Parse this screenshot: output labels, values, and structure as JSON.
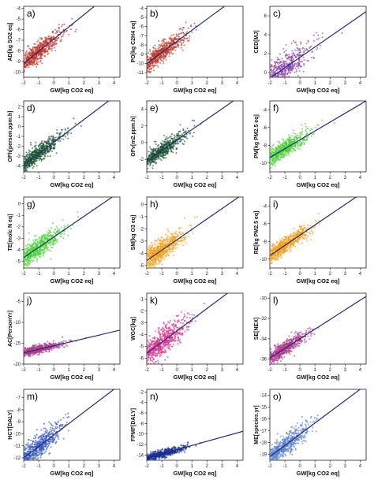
{
  "figure": {
    "footer_note": ""
  },
  "chart_data": [
    {
      "type": "scatter",
      "panel_label": "a)",
      "xlabel": "GW[kg CO2 eq]",
      "ylabel": "AD[kg SO2 eq]",
      "color": "#c0392b",
      "xticks": [
        "-2",
        "-1",
        "0",
        "1",
        "2",
        "3",
        "4"
      ],
      "yticks": [
        "-4",
        "-5",
        "-6",
        "-7",
        "-8",
        "-9",
        "-10"
      ],
      "xlim": [
        -2,
        4.4
      ],
      "ylim": [
        -10.5,
        -3.8
      ],
      "spread": 0.45,
      "fit": {
        "slope": 1.15,
        "intercept": -6.9
      },
      "x": [
        -1.5,
        -0.5,
        0,
        0.5,
        1,
        2,
        3
      ],
      "y": [
        -8.6,
        -7.5,
        -6.9,
        -6.3,
        -5.8,
        -4.6,
        -3.5
      ],
      "n_points": 700
    },
    {
      "type": "scatter",
      "panel_label": "b)",
      "xlabel": "GW[kg CO2 eq]",
      "ylabel": "PO[kg C2H4 eq]",
      "color": "#c0392b",
      "xticks": [
        "-2",
        "-1",
        "0",
        "1",
        "2",
        "3",
        "4"
      ],
      "yticks": [
        "-4",
        "-5",
        "-6",
        "-7",
        "-8",
        "-9",
        "-10",
        "-11"
      ],
      "xlim": [
        -2,
        4.4
      ],
      "ylim": [
        -11.5,
        -3.8
      ],
      "spread": 0.5,
      "fit": {
        "slope": 1.2,
        "intercept": -7.6
      },
      "x": [
        -1.5,
        -0.5,
        0,
        0.5,
        1,
        2,
        3
      ],
      "y": [
        -9.4,
        -8.2,
        -7.6,
        -7.0,
        -6.4,
        -5.2,
        -4.0
      ],
      "n_points": 700
    },
    {
      "type": "scatter",
      "panel_label": "c)",
      "xlabel": "GW[kg CO2 eq]",
      "ylabel": "CED[MJ]",
      "color": "#8e44ad",
      "xticks": [
        "-2",
        "-1",
        "0",
        "1",
        "2",
        "3",
        "4"
      ],
      "yticks": [
        "6",
        "4",
        "2",
        "0"
      ],
      "xlim": [
        -2,
        4.4
      ],
      "ylim": [
        -0.5,
        7
      ],
      "spread": 0.8,
      "fit": {
        "slope": 1.1,
        "intercept": 1.6
      },
      "x": [
        -1.5,
        -0.5,
        0,
        0.5,
        1,
        2,
        3
      ],
      "y": [
        0.0,
        1.1,
        1.6,
        2.2,
        2.7,
        3.8,
        4.9
      ],
      "n_points": 600
    },
    {
      "type": "scatter",
      "panel_label": "d)",
      "xlabel": "GW[kg CO2 eq]",
      "ylabel": "OFh[person.ppm.h]",
      "color": "#1e5631",
      "xticks": [
        "-2",
        "-1",
        "0",
        "1",
        "2",
        "3",
        "4"
      ],
      "yticks": [
        "2",
        "1",
        "0",
        "-1",
        "-2",
        "-3",
        "-4"
      ],
      "xlim": [
        -2,
        4.4
      ],
      "ylim": [
        -4.6,
        2.6
      ],
      "spread": 0.45,
      "fit": {
        "slope": 1.15,
        "intercept": -1.6
      },
      "x": [
        -1.5,
        -0.5,
        0,
        0.5,
        1,
        2,
        3
      ],
      "y": [
        -3.3,
        -2.2,
        -1.6,
        -1.0,
        -0.5,
        0.7,
        1.9
      ],
      "n_points": 700
    },
    {
      "type": "scatter",
      "panel_label": "e)",
      "xlabel": "GW[kg CO2 eq]",
      "ylabel": "OFv[m2.ppm.h]",
      "color": "#1e5631",
      "xticks": [
        "-2",
        "-1",
        "0",
        "1",
        "2",
        "3",
        "4"
      ],
      "yticks": [
        "4",
        "2",
        "0",
        "-2"
      ],
      "xlim": [
        -2,
        4.4
      ],
      "ylim": [
        -3.5,
        5
      ],
      "spread": 0.5,
      "fit": {
        "slope": 1.25,
        "intercept": 0.3
      },
      "x": [
        -1.5,
        -0.5,
        0,
        0.5,
        1,
        2,
        3
      ],
      "y": [
        -1.6,
        -0.3,
        0.3,
        0.9,
        1.6,
        2.8,
        4.1
      ],
      "n_points": 700
    },
    {
      "type": "scatter",
      "panel_label": "f)",
      "xlabel": "GW[kg CO2 eq]",
      "ylabel": "PM[kg PM2.5 eq]",
      "color": "#4cd137",
      "xticks": [
        "-2",
        "-1",
        "0",
        "1",
        "2",
        "3",
        "4"
      ],
      "yticks": [
        "-4",
        "-6",
        "-8",
        "-10"
      ],
      "xlim": [
        -2,
        4.4
      ],
      "ylim": [
        -11,
        -3
      ],
      "spread": 0.5,
      "fit": {
        "slope": 1.0,
        "intercept": -7.4
      },
      "x": [
        -1.5,
        -0.5,
        0,
        0.5,
        1,
        2,
        3
      ],
      "y": [
        -8.9,
        -7.9,
        -7.4,
        -6.9,
        -6.4,
        -5.4,
        -4.4
      ],
      "n_points": 700
    },
    {
      "type": "scatter",
      "panel_label": "g)",
      "xlabel": "GW[kg CO2 eq]",
      "ylabel": "TE[molc N eq]",
      "color": "#4cd137",
      "xticks": [
        "-2",
        "-1",
        "0",
        "1",
        "2",
        "3",
        "4"
      ],
      "yticks": [
        "0",
        "-1",
        "-2",
        "-3",
        "-4",
        "-5"
      ],
      "xlim": [
        -2,
        4.4
      ],
      "ylim": [
        -5.6,
        0.6
      ],
      "spread": 0.45,
      "fit": {
        "slope": 0.9,
        "intercept": -2.9
      },
      "x": [
        -1.5,
        -0.5,
        0,
        0.5,
        1,
        2,
        3
      ],
      "y": [
        -4.3,
        -3.4,
        -2.9,
        -2.5,
        -2.0,
        -1.1,
        -0.2
      ],
      "n_points": 700
    },
    {
      "type": "scatter",
      "panel_label": "h)",
      "xlabel": "GW[kg CO2 eq]",
      "ylabel": "SM[kg O3 eq]",
      "color": "#f39c12",
      "xticks": [
        "-2",
        "-1",
        "0",
        "1",
        "2",
        "3",
        "4"
      ],
      "yticks": [
        "0",
        "-1",
        "-2",
        "-3",
        "-4",
        "-5"
      ],
      "xlim": [
        -2,
        4.4
      ],
      "ylim": [
        -5.2,
        0.6
      ],
      "spread": 0.45,
      "fit": {
        "slope": 0.85,
        "intercept": -2.9
      },
      "x": [
        -1.5,
        -0.5,
        0,
        0.5,
        1,
        2,
        3
      ],
      "y": [
        -4.2,
        -3.3,
        -2.9,
        -2.5,
        -2.1,
        -1.2,
        -0.4
      ],
      "n_points": 700
    },
    {
      "type": "scatter",
      "panel_label": "i)",
      "xlabel": "GW[kg CO2 eq]",
      "ylabel": "RE[kg PM2.5 eq]",
      "color": "#f39c12",
      "xticks": [
        "-2",
        "-1",
        "0",
        "1",
        "2",
        "3",
        "4"
      ],
      "yticks": [
        "-4",
        "-6",
        "-8",
        "-10"
      ],
      "xlim": [
        -2,
        4.4
      ],
      "ylim": [
        -11,
        -3
      ],
      "spread": 0.45,
      "fit": {
        "slope": 1.15,
        "intercept": -7.3
      },
      "x": [
        -1.5,
        -0.5,
        0,
        0.5,
        1,
        2,
        3
      ],
      "y": [
        -9.0,
        -7.9,
        -7.3,
        -6.7,
        -6.2,
        -5.0,
        -3.9
      ],
      "n_points": 700
    },
    {
      "type": "scatter",
      "panel_label": "j)",
      "xlabel": "GW[kg CO2 eq]",
      "ylabel": "AC[PersonYr]",
      "color": "#b03a8a",
      "xticks": [
        "-2",
        "-1",
        "0",
        "1",
        "2",
        "3",
        "4"
      ],
      "yticks": [
        "-5",
        "-10",
        "-15",
        "-20"
      ],
      "xlim": [
        -2,
        4.4
      ],
      "ylim": [
        -20,
        -3
      ],
      "spread": 0.5,
      "fit": {
        "slope": 0.85,
        "intercept": -15.6
      },
      "x": [
        -1.5,
        -0.5,
        0,
        0.5,
        1,
        2,
        3
      ],
      "y": [
        -16.9,
        -16.0,
        -15.6,
        -15.2,
        -14.8,
        -13.9,
        -13.1
      ],
      "n_points": 700
    },
    {
      "type": "scatter",
      "panel_label": "k)",
      "xlabel": "GW[kg CO2 eq]",
      "ylabel": "WGC[kg]",
      "color": "#d6338a",
      "xticks": [
        "-2",
        "-1",
        "0",
        "1",
        "2",
        "3",
        "4"
      ],
      "yticks": [
        "-1",
        "-2",
        "-3",
        "-4",
        "-5",
        "-6"
      ],
      "xlim": [
        -2,
        4.4
      ],
      "ylim": [
        -6.5,
        -0.5
      ],
      "spread": 0.55,
      "fit": {
        "slope": 0.95,
        "intercept": -3.7
      },
      "x": [
        -1.5,
        -0.5,
        0,
        0.5,
        1,
        2,
        3
      ],
      "y": [
        -5.1,
        -4.2,
        -3.7,
        -3.2,
        -2.8,
        -1.8,
        -0.9
      ],
      "n_points": 700
    },
    {
      "type": "scatter",
      "panel_label": "l)",
      "xlabel": "GW[kg CO2 eq]",
      "ylabel": "SE[NEX]",
      "color": "#b03a8a",
      "xticks": [
        "-2",
        "-1",
        "0",
        "1",
        "2",
        "3",
        "4"
      ],
      "yticks": [
        "-30",
        "-32",
        "-34",
        "-36"
      ],
      "xlim": [
        -2,
        4.4
      ],
      "ylim": [
        -36.5,
        -29.5
      ],
      "spread": 0.35,
      "fit": {
        "slope": 0.95,
        "intercept": -34.0
      },
      "x": [
        -1.5,
        -0.5,
        0,
        0.5,
        1,
        2,
        3
      ],
      "y": [
        -35.4,
        -34.5,
        -34.0,
        -33.5,
        -33.1,
        -32.1,
        -31.2
      ],
      "n_points": 700
    },
    {
      "type": "scatter",
      "panel_label": "m)",
      "xlabel": "GW[kg CO2 eq]",
      "ylabel": "HCT[DALY]",
      "color": "#3a5bbf",
      "xticks": [
        "-2",
        "-1",
        "0",
        "1",
        "2",
        "3",
        "4"
      ],
      "yticks": [
        "-7",
        "-8",
        "-9",
        "-10",
        "-11",
        "-12"
      ],
      "xlim": [
        -2,
        4.4
      ],
      "ylim": [
        -12.2,
        -6.3
      ],
      "spread": 0.45,
      "fit": {
        "slope": 0.95,
        "intercept": -10.1
      },
      "x": [
        -1.5,
        -0.5,
        0,
        0.5,
        1,
        2,
        3
      ],
      "y": [
        -11.5,
        -10.6,
        -10.1,
        -9.6,
        -9.2,
        -8.2,
        -7.3
      ],
      "n_points": 700
    },
    {
      "type": "scatter",
      "panel_label": "n)",
      "xlabel": "GW[kg CO2 eq]",
      "ylabel": "FPMF[DALY]",
      "color": "#1a3399",
      "xticks": [
        "-2",
        "-1",
        "0",
        "1",
        "2",
        "3",
        "4"
      ],
      "yticks": [
        "-2",
        "-4",
        "-6",
        "-8",
        "-10",
        "-12",
        "-14"
      ],
      "xlim": [
        -2,
        4.4
      ],
      "ylim": [
        -15,
        -1.5
      ],
      "spread": 0.35,
      "fit": {
        "slope": 0.8,
        "intercept": -13.0
      },
      "x": [
        -1.5,
        -0.5,
        0,
        0.5,
        1,
        2,
        3
      ],
      "y": [
        -14.2,
        -13.4,
        -13.0,
        -12.6,
        -12.2,
        -11.4,
        -10.6
      ],
      "n_points": 700
    },
    {
      "type": "scatter",
      "panel_label": "o)",
      "xlabel": "GW[kg CO2 eq]",
      "ylabel": "ME[species.yr]",
      "color": "#5b7fcf",
      "xticks": [
        "-2",
        "-1",
        "0",
        "1",
        "2",
        "3",
        "4"
      ],
      "yticks": [
        "-14",
        "-15",
        "-16",
        "-17",
        "-18",
        "-19"
      ],
      "xlim": [
        -2,
        4.4
      ],
      "ylim": [
        -19.5,
        -13.5
      ],
      "spread": 0.45,
      "fit": {
        "slope": 0.95,
        "intercept": -17.3
      },
      "x": [
        -1.5,
        -0.5,
        0,
        0.5,
        1,
        2,
        3
      ],
      "y": [
        -18.7,
        -17.8,
        -17.3,
        -16.8,
        -16.4,
        -15.4,
        -14.5
      ],
      "n_points": 700
    }
  ]
}
